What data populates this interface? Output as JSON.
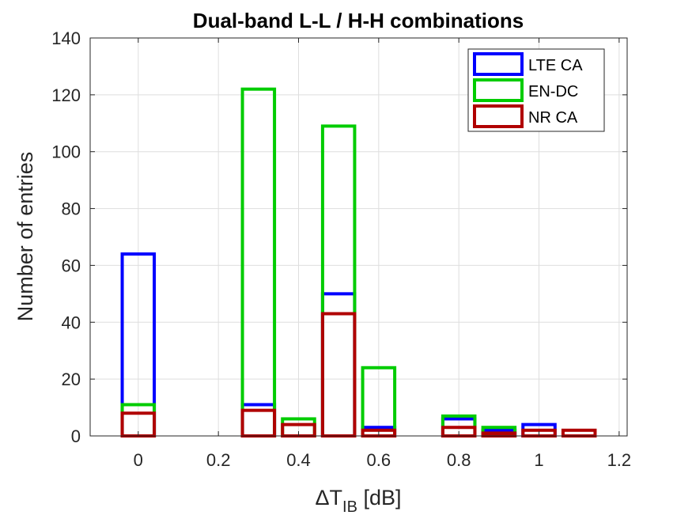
{
  "chart_data": {
    "type": "bar",
    "style": "overlaid unfilled outline bars (histogram)",
    "title": "Dual-band L-L / H-H combinations",
    "xlabel_main": "ΔT",
    "xlabel_sub": "IB",
    "xlabel_unit": " [dB]",
    "ylabel": "Number of entries",
    "xlim": [
      -0.12,
      1.22
    ],
    "ylim": [
      0,
      140
    ],
    "x_ticks": [
      0,
      0.2,
      0.4,
      0.6,
      0.8,
      1,
      1.2
    ],
    "x_tick_labels": [
      "0",
      "0.2",
      "0.4",
      "0.6",
      "0.8",
      "1",
      "1.2"
    ],
    "y_ticks": [
      0,
      20,
      40,
      60,
      80,
      100,
      120,
      140
    ],
    "y_tick_labels": [
      "0",
      "20",
      "40",
      "60",
      "80",
      "100",
      "120",
      "140"
    ],
    "grid": true,
    "legend_position": "top-right",
    "bin_width": 0.08,
    "bin_centers": [
      0,
      0.1,
      0.2,
      0.3,
      0.4,
      0.5,
      0.6,
      0.7,
      0.8,
      0.9,
      1.0,
      1.1
    ],
    "series": [
      {
        "name": "LTE CA",
        "color": "#0000ff",
        "values": [
          64,
          0,
          0,
          11,
          0,
          50,
          3,
          0,
          6,
          2,
          4,
          0
        ]
      },
      {
        "name": "EN-DC",
        "color": "#00cc00",
        "values": [
          11,
          0,
          0,
          122,
          6,
          109,
          24,
          0,
          7,
          3,
          0,
          0
        ]
      },
      {
        "name": "NR CA",
        "color": "#b00000",
        "values": [
          8,
          0,
          0,
          9,
          4,
          43,
          2,
          0,
          3,
          1,
          2,
          2
        ]
      }
    ]
  }
}
